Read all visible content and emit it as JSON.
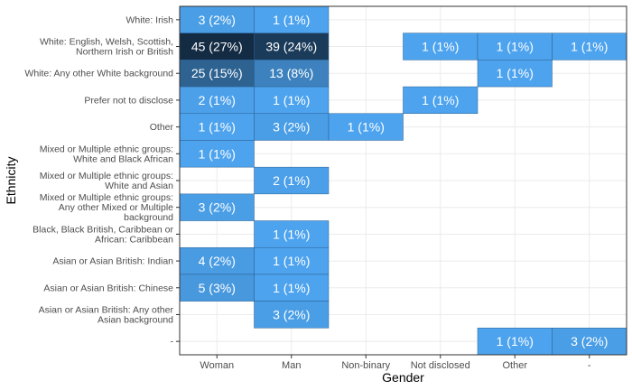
{
  "chart_data": {
    "type": "heatmap",
    "xlabel": "Gender",
    "ylabel": "Ethnicity",
    "x_categories": [
      "Woman",
      "Man",
      "Non-binary",
      "Not disclosed",
      "Other",
      "-"
    ],
    "y_categories": [
      {
        "lines": [
          "White: Irish"
        ]
      },
      {
        "lines": [
          "White: English, Welsh, Scottish,",
          "Northern Irish or British"
        ]
      },
      {
        "lines": [
          "White: Any other White background"
        ]
      },
      {
        "lines": [
          "Prefer not to disclose"
        ]
      },
      {
        "lines": [
          "Other"
        ]
      },
      {
        "lines": [
          "Mixed or Multiple ethnic groups:",
          "White and Black African"
        ]
      },
      {
        "lines": [
          "Mixed or Multiple ethnic groups:",
          "White and Asian"
        ]
      },
      {
        "lines": [
          "Mixed or Multiple ethnic groups:",
          "Any other Mixed or Multiple",
          "background"
        ]
      },
      {
        "lines": [
          "Black, Black British, Caribbean or",
          "African: Caribbean"
        ]
      },
      {
        "lines": [
          "Asian or Asian British: Indian"
        ]
      },
      {
        "lines": [
          "Asian or Asian British: Chinese"
        ]
      },
      {
        "lines": [
          "Asian or Asian British: Any other",
          "Asian background"
        ]
      },
      {
        "lines": [
          "-"
        ]
      }
    ],
    "cells": [
      {
        "x": "Woman",
        "y": 0,
        "count": 3,
        "label": "3 (2%)"
      },
      {
        "x": "Man",
        "y": 0,
        "count": 1,
        "label": "1 (1%)"
      },
      {
        "x": "Woman",
        "y": 1,
        "count": 45,
        "label": "45 (27%)"
      },
      {
        "x": "Man",
        "y": 1,
        "count": 39,
        "label": "39 (24%)"
      },
      {
        "x": "Not disclosed",
        "y": 1,
        "count": 1,
        "label": "1 (1%)"
      },
      {
        "x": "Other",
        "y": 1,
        "count": 1,
        "label": "1 (1%)"
      },
      {
        "x": "-",
        "y": 1,
        "count": 1,
        "label": "1 (1%)"
      },
      {
        "x": "Woman",
        "y": 2,
        "count": 25,
        "label": "25 (15%)"
      },
      {
        "x": "Man",
        "y": 2,
        "count": 13,
        "label": "13 (8%)"
      },
      {
        "x": "Other",
        "y": 2,
        "count": 1,
        "label": "1 (1%)"
      },
      {
        "x": "Woman",
        "y": 3,
        "count": 2,
        "label": "2 (1%)"
      },
      {
        "x": "Man",
        "y": 3,
        "count": 1,
        "label": "1 (1%)"
      },
      {
        "x": "Not disclosed",
        "y": 3,
        "count": 1,
        "label": "1 (1%)"
      },
      {
        "x": "Woman",
        "y": 4,
        "count": 1,
        "label": "1 (1%)"
      },
      {
        "x": "Man",
        "y": 4,
        "count": 3,
        "label": "3 (2%)"
      },
      {
        "x": "Non-binary",
        "y": 4,
        "count": 1,
        "label": "1 (1%)"
      },
      {
        "x": "Woman",
        "y": 5,
        "count": 1,
        "label": "1 (1%)"
      },
      {
        "x": "Man",
        "y": 6,
        "count": 2,
        "label": "2 (1%)"
      },
      {
        "x": "Woman",
        "y": 7,
        "count": 3,
        "label": "3 (2%)"
      },
      {
        "x": "Man",
        "y": 8,
        "count": 1,
        "label": "1 (1%)"
      },
      {
        "x": "Woman",
        "y": 9,
        "count": 4,
        "label": "4 (2%)"
      },
      {
        "x": "Man",
        "y": 9,
        "count": 1,
        "label": "1 (1%)"
      },
      {
        "x": "Woman",
        "y": 10,
        "count": 5,
        "label": "5 (3%)"
      },
      {
        "x": "Man",
        "y": 10,
        "count": 1,
        "label": "1 (1%)"
      },
      {
        "x": "Man",
        "y": 11,
        "count": 3,
        "label": "3 (2%)"
      },
      {
        "x": "Other",
        "y": 12,
        "count": 1,
        "label": "1 (1%)"
      },
      {
        "x": "-",
        "y": 12,
        "count": 3,
        "label": "3 (2%)"
      }
    ],
    "color_scale": {
      "low": "#4da3ee",
      "high": "#132b43",
      "min": 1,
      "max": 45
    },
    "grid": true,
    "legend": "none"
  }
}
